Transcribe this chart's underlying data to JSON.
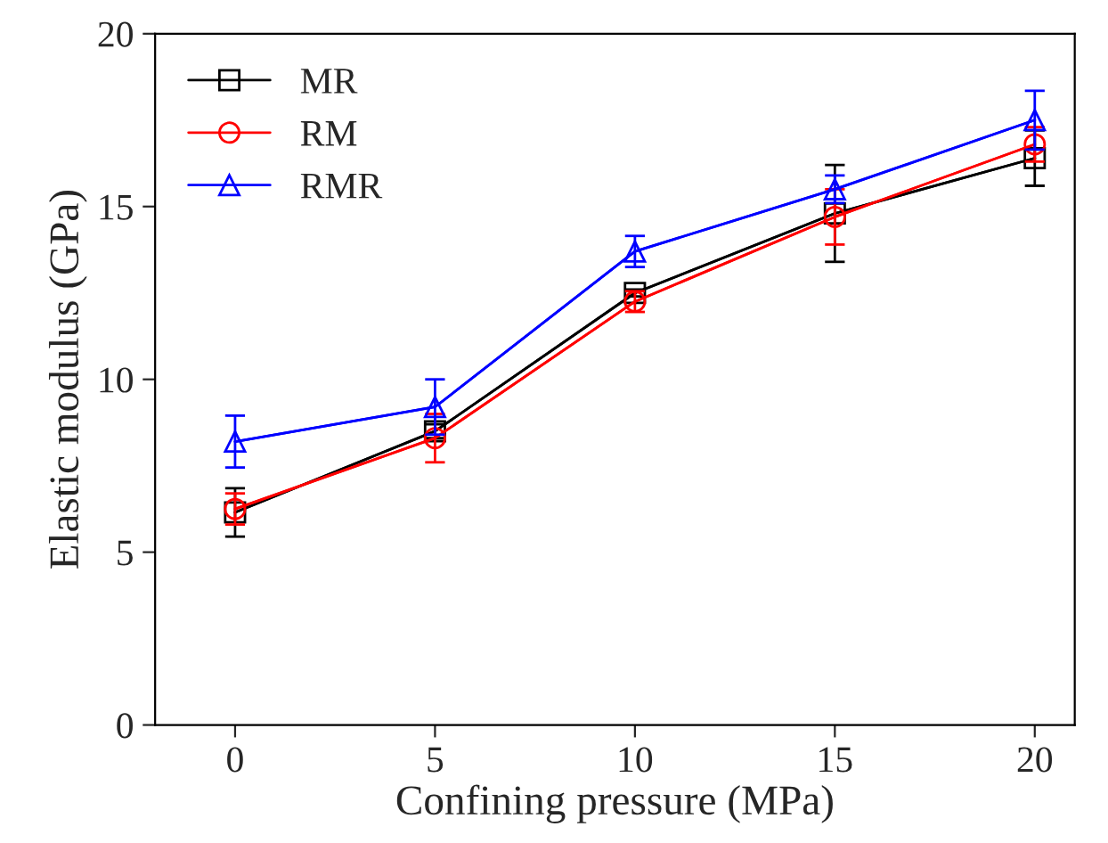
{
  "chart_data": {
    "type": "line",
    "xlabel": "Confining pressure (MPa)",
    "ylabel": "Elastic modulus (GPa)",
    "x": [
      0,
      5,
      10,
      15,
      20
    ],
    "series": [
      {
        "name": "MR",
        "color": "#000000",
        "marker": "square",
        "values": [
          6.15,
          8.5,
          12.5,
          14.8,
          16.4
        ],
        "errors": [
          0.7,
          0.2,
          0.1,
          1.4,
          0.8
        ]
      },
      {
        "name": "RM",
        "color": "#ff0000",
        "marker": "circle",
        "values": [
          6.25,
          8.3,
          12.25,
          14.7,
          16.8
        ],
        "errors": [
          0.45,
          0.7,
          0.3,
          0.8,
          0.5
        ]
      },
      {
        "name": "RMR",
        "color": "#0000ff",
        "marker": "triangle",
        "values": [
          8.2,
          9.2,
          13.7,
          15.5,
          17.5
        ],
        "errors": [
          0.75,
          0.8,
          0.45,
          0.4,
          0.85
        ]
      }
    ],
    "xlim": [
      -2,
      21
    ],
    "xticks": [
      0,
      5,
      10,
      15,
      20
    ],
    "ylim": [
      0,
      20
    ],
    "yticks": [
      0,
      5,
      10,
      15,
      20
    ],
    "grid": false,
    "legend": "top left",
    "line_style": "solid"
  }
}
